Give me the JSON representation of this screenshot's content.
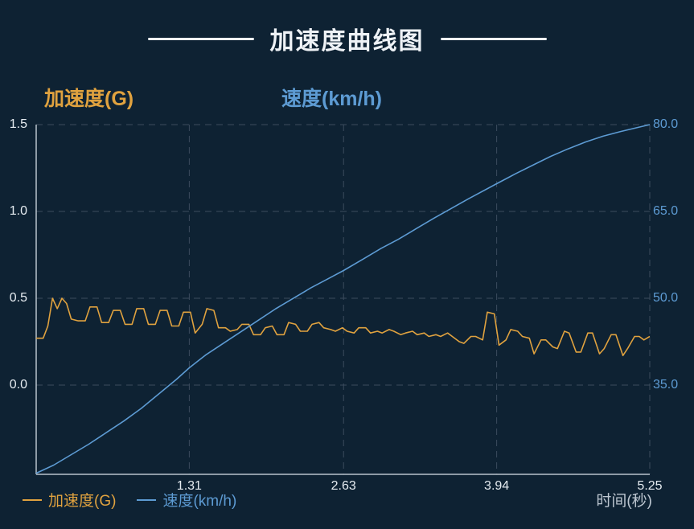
{
  "title": "加速度曲线图",
  "axes": {
    "left_label": "加速度(G)",
    "right_label": "速度(km/h)",
    "x_label": "时间(秒)",
    "left_ticks": [
      "1.5",
      "1.0",
      "0.5",
      "0.0"
    ],
    "right_ticks": [
      "80.0",
      "65.0",
      "50.0",
      "35.0"
    ],
    "x_ticks": [
      "1.31",
      "2.63",
      "3.94",
      "5.25"
    ]
  },
  "legend": [
    {
      "label": "加速度(G)",
      "color": "#e0a23f"
    },
    {
      "label": "速度(km/h)",
      "color": "#5d9bd3"
    }
  ],
  "colors": {
    "background": "#0e2233",
    "title_text": "#eef2f6",
    "grid": "#3c4c5e",
    "axis_line": "#b9c3cd",
    "acceleration_series": "#e0a23f",
    "speed_series": "#5d9bd3",
    "left_tick_text": "#e6ecf1",
    "right_tick_text": "#5d9bd3",
    "x_tick_text": "#e6ecf1",
    "x_axis_label_text": "#bcc6d0"
  },
  "chart_data": {
    "type": "line",
    "title": "加速度曲线图",
    "xlabel": "时间(秒)",
    "grid": true,
    "legend_position": "bottom-left",
    "xlim": [
      0,
      5.25
    ],
    "x_ticks": [
      1.31,
      2.63,
      3.94,
      5.25
    ],
    "left_axis": {
      "label": "加速度(G)",
      "ticks": [
        1.5,
        1.0,
        0.5,
        0.0
      ],
      "ylim": [
        -0.514,
        1.5
      ]
    },
    "right_axis": {
      "label": "速度(km/h)",
      "ticks": [
        80.0,
        65.0,
        50.0,
        35.0
      ],
      "ylim": [
        19.6,
        80
      ]
    },
    "series": [
      {
        "name": "加速度(G)",
        "axis": "left",
        "color": "#e0a23f",
        "points": [
          [
            0.0,
            0.27
          ],
          [
            0.06,
            0.27
          ],
          [
            0.1,
            0.34
          ],
          [
            0.14,
            0.5
          ],
          [
            0.18,
            0.44
          ],
          [
            0.22,
            0.5
          ],
          [
            0.26,
            0.47
          ],
          [
            0.3,
            0.38
          ],
          [
            0.36,
            0.37
          ],
          [
            0.42,
            0.37
          ],
          [
            0.46,
            0.45
          ],
          [
            0.52,
            0.45
          ],
          [
            0.56,
            0.36
          ],
          [
            0.62,
            0.36
          ],
          [
            0.66,
            0.43
          ],
          [
            0.72,
            0.43
          ],
          [
            0.76,
            0.35
          ],
          [
            0.82,
            0.35
          ],
          [
            0.86,
            0.44
          ],
          [
            0.92,
            0.44
          ],
          [
            0.96,
            0.35
          ],
          [
            1.02,
            0.35
          ],
          [
            1.06,
            0.43
          ],
          [
            1.12,
            0.43
          ],
          [
            1.16,
            0.34
          ],
          [
            1.22,
            0.34
          ],
          [
            1.26,
            0.42
          ],
          [
            1.32,
            0.42
          ],
          [
            1.36,
            0.3
          ],
          [
            1.42,
            0.35
          ],
          [
            1.46,
            0.44
          ],
          [
            1.52,
            0.43
          ],
          [
            1.56,
            0.33
          ],
          [
            1.62,
            0.33
          ],
          [
            1.66,
            0.31
          ],
          [
            1.72,
            0.32
          ],
          [
            1.76,
            0.35
          ],
          [
            1.82,
            0.35
          ],
          [
            1.86,
            0.29
          ],
          [
            1.92,
            0.29
          ],
          [
            1.96,
            0.33
          ],
          [
            2.02,
            0.34
          ],
          [
            2.06,
            0.29
          ],
          [
            2.12,
            0.29
          ],
          [
            2.16,
            0.36
          ],
          [
            2.22,
            0.35
          ],
          [
            2.26,
            0.31
          ],
          [
            2.32,
            0.31
          ],
          [
            2.36,
            0.35
          ],
          [
            2.42,
            0.36
          ],
          [
            2.46,
            0.33
          ],
          [
            2.52,
            0.32
          ],
          [
            2.56,
            0.31
          ],
          [
            2.62,
            0.33
          ],
          [
            2.66,
            0.31
          ],
          [
            2.72,
            0.3
          ],
          [
            2.76,
            0.33
          ],
          [
            2.82,
            0.33
          ],
          [
            2.86,
            0.3
          ],
          [
            2.92,
            0.31
          ],
          [
            2.96,
            0.3
          ],
          [
            3.02,
            0.32
          ],
          [
            3.06,
            0.31
          ],
          [
            3.12,
            0.29
          ],
          [
            3.16,
            0.3
          ],
          [
            3.22,
            0.31
          ],
          [
            3.26,
            0.29
          ],
          [
            3.32,
            0.3
          ],
          [
            3.36,
            0.28
          ],
          [
            3.42,
            0.29
          ],
          [
            3.46,
            0.28
          ],
          [
            3.52,
            0.3
          ],
          [
            3.56,
            0.28
          ],
          [
            3.62,
            0.25
          ],
          [
            3.66,
            0.24
          ],
          [
            3.72,
            0.28
          ],
          [
            3.76,
            0.28
          ],
          [
            3.82,
            0.26
          ],
          [
            3.86,
            0.42
          ],
          [
            3.92,
            0.41
          ],
          [
            3.96,
            0.23
          ],
          [
            4.02,
            0.26
          ],
          [
            4.06,
            0.32
          ],
          [
            4.12,
            0.31
          ],
          [
            4.16,
            0.28
          ],
          [
            4.22,
            0.27
          ],
          [
            4.26,
            0.18
          ],
          [
            4.32,
            0.26
          ],
          [
            4.36,
            0.26
          ],
          [
            4.42,
            0.22
          ],
          [
            4.46,
            0.21
          ],
          [
            4.52,
            0.31
          ],
          [
            4.56,
            0.3
          ],
          [
            4.62,
            0.19
          ],
          [
            4.66,
            0.19
          ],
          [
            4.72,
            0.3
          ],
          [
            4.76,
            0.3
          ],
          [
            4.82,
            0.18
          ],
          [
            4.86,
            0.21
          ],
          [
            4.92,
            0.29
          ],
          [
            4.96,
            0.29
          ],
          [
            5.02,
            0.17
          ],
          [
            5.06,
            0.21
          ],
          [
            5.12,
            0.28
          ],
          [
            5.16,
            0.28
          ],
          [
            5.2,
            0.26
          ],
          [
            5.25,
            0.28
          ]
        ]
      },
      {
        "name": "速度(km/h)",
        "axis": "right",
        "color": "#5d9bd3",
        "points": [
          [
            0.0,
            19.8
          ],
          [
            0.15,
            21.2
          ],
          [
            0.3,
            23.0
          ],
          [
            0.45,
            24.8
          ],
          [
            0.6,
            26.8
          ],
          [
            0.75,
            28.8
          ],
          [
            0.9,
            31.0
          ],
          [
            1.05,
            33.5
          ],
          [
            1.2,
            36.0
          ],
          [
            1.31,
            38.0
          ],
          [
            1.45,
            40.2
          ],
          [
            1.6,
            42.2
          ],
          [
            1.75,
            44.2
          ],
          [
            1.9,
            46.2
          ],
          [
            2.05,
            48.2
          ],
          [
            2.2,
            50.0
          ],
          [
            2.35,
            51.8
          ],
          [
            2.5,
            53.4
          ],
          [
            2.63,
            54.8
          ],
          [
            2.8,
            56.8
          ],
          [
            2.95,
            58.6
          ],
          [
            3.1,
            60.2
          ],
          [
            3.25,
            62.0
          ],
          [
            3.4,
            63.8
          ],
          [
            3.55,
            65.5
          ],
          [
            3.7,
            67.2
          ],
          [
            3.94,
            69.8
          ],
          [
            4.1,
            71.5
          ],
          [
            4.25,
            73.0
          ],
          [
            4.4,
            74.5
          ],
          [
            4.55,
            75.8
          ],
          [
            4.7,
            77.0
          ],
          [
            4.85,
            78.0
          ],
          [
            5.0,
            78.8
          ],
          [
            5.25,
            80.0
          ]
        ]
      }
    ]
  }
}
